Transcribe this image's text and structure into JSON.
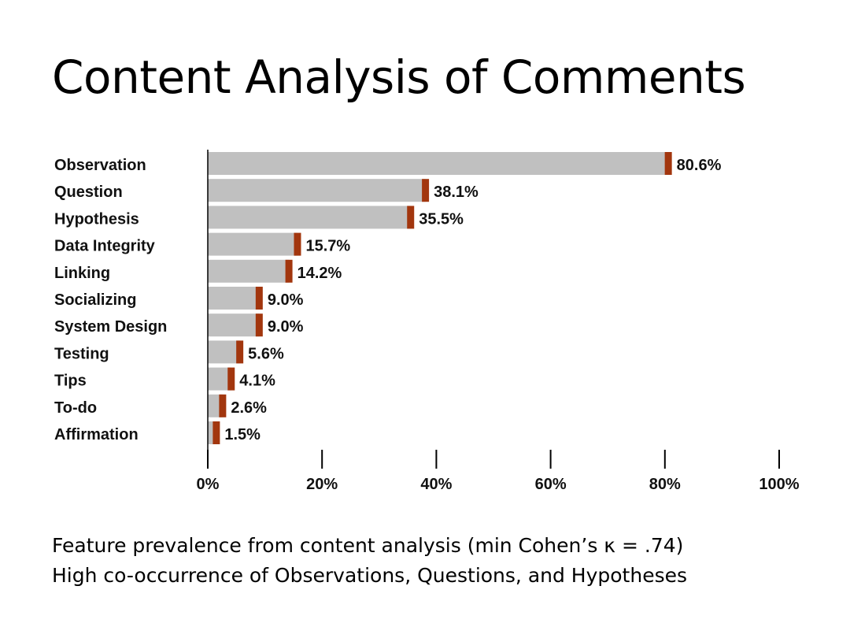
{
  "slide": {
    "title": "Content Analysis of Comments",
    "captions": [
      "Feature prevalence from content analysis (min Cohen’s κ = .74)",
      "High co-occurrence of Observations, Questions, and Hypotheses"
    ]
  },
  "colors": {
    "bar": "#c0c0c0",
    "bar_end": "#a2360e",
    "axis": "#000000"
  },
  "chart_data": {
    "type": "bar",
    "orientation": "horizontal",
    "title": "Content Analysis of Comments",
    "categories": [
      "Observation",
      "Question",
      "Hypothesis",
      "Data Integrity",
      "Linking",
      "Socializing",
      "System Design",
      "Testing",
      "Tips",
      "To-do",
      "Affirmation"
    ],
    "values": [
      80.6,
      38.1,
      35.5,
      15.7,
      14.2,
      9.0,
      9.0,
      5.6,
      4.1,
      2.6,
      1.5
    ],
    "value_labels": [
      "80.6%",
      "38.1%",
      "35.5%",
      "15.7%",
      "14.2%",
      "9.0%",
      "9.0%",
      "5.6%",
      "4.1%",
      "2.6%",
      "1.5%"
    ],
    "xlim": [
      0,
      100
    ],
    "xticks": [
      0,
      20,
      40,
      60,
      80,
      100
    ],
    "xtick_labels": [
      "0%",
      "20%",
      "40%",
      "60%",
      "80%",
      "100%"
    ],
    "grid": false,
    "legend": "none"
  }
}
